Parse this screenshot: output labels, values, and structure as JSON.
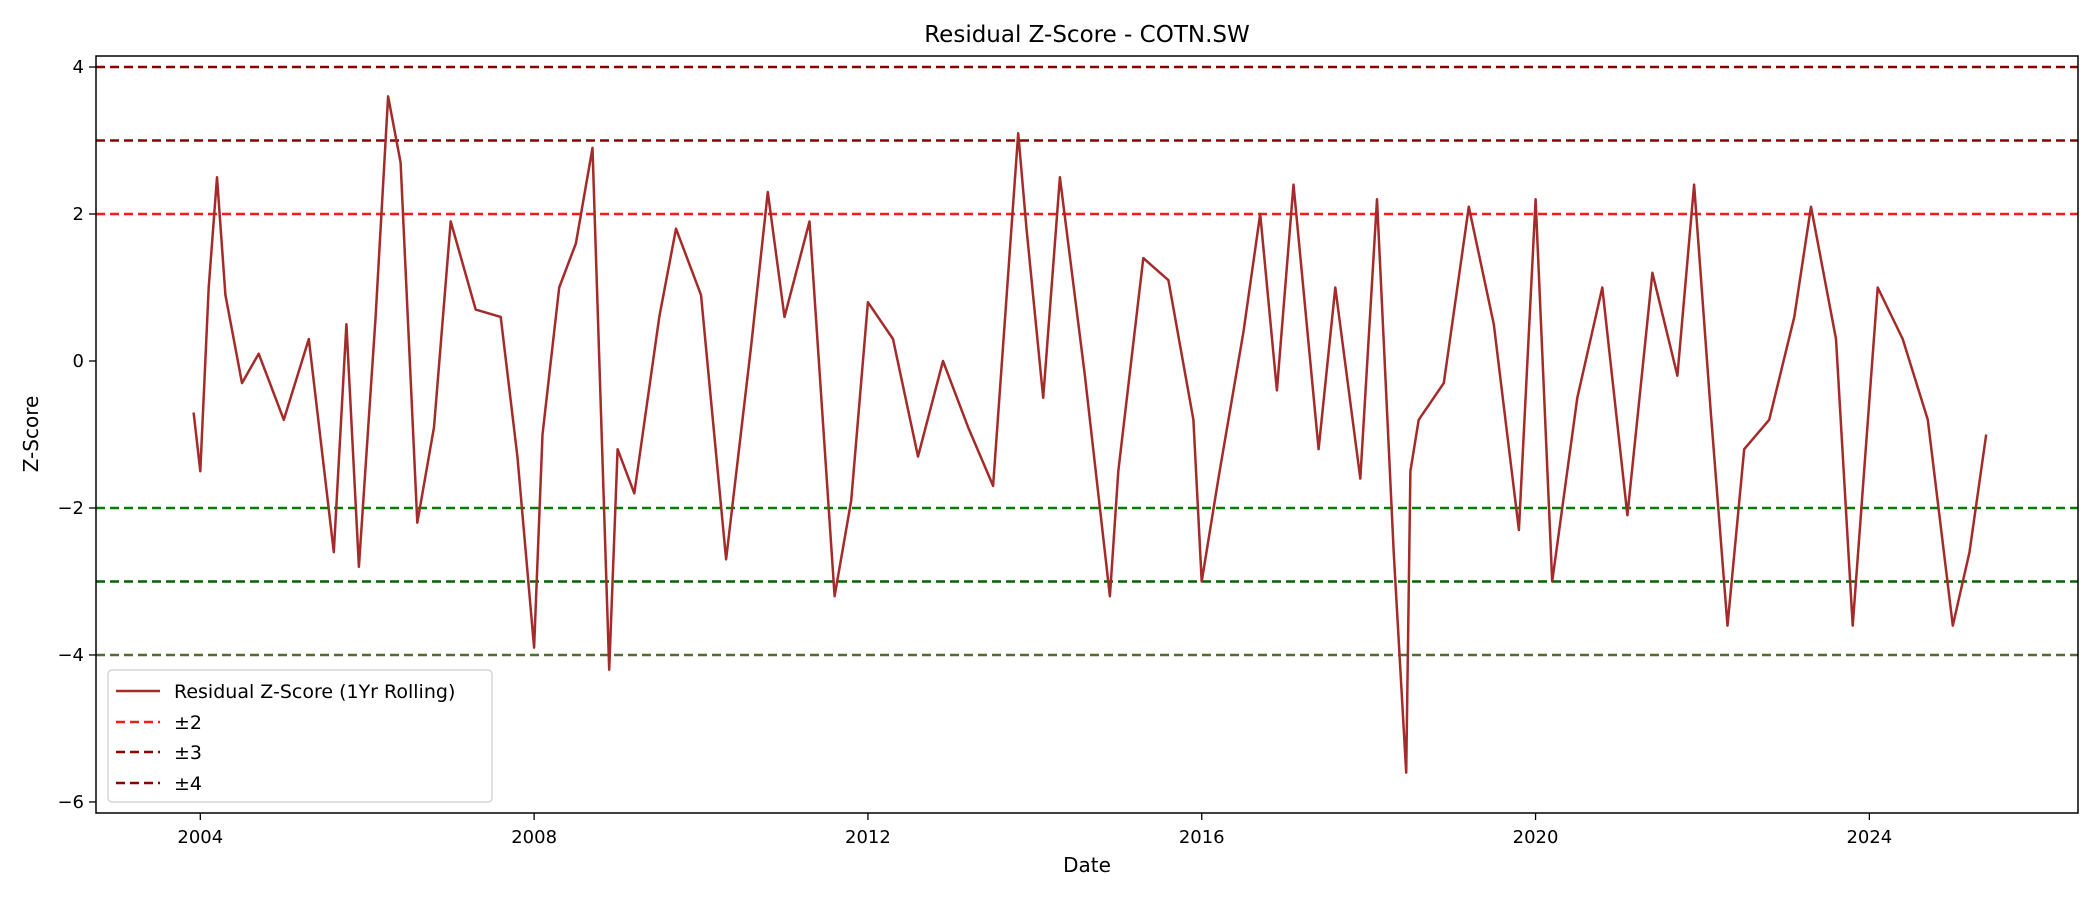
{
  "chart_data": {
    "type": "line",
    "title": "Residual Z-Score - COTN.SW",
    "xlabel": "Date",
    "ylabel": "Z-Score",
    "xlim": [
      2002.75,
      2026.5
    ],
    "ylim": [
      -6.15,
      4.15
    ],
    "x_ticks": [
      2004,
      2008,
      2012,
      2016,
      2020,
      2024
    ],
    "x_tick_labels": [
      "2004",
      "2008",
      "2012",
      "2016",
      "2020",
      "2024"
    ],
    "y_ticks": [
      -6,
      -4,
      -2,
      0,
      2,
      4
    ],
    "y_tick_labels": [
      "−6",
      "−4",
      "−2",
      "0",
      "2",
      "4"
    ],
    "grid": false,
    "legend_position": "lower-left",
    "reference_lines": [
      {
        "y": 2,
        "color": "#ff1a1a",
        "style": "dashed",
        "series": "±2"
      },
      {
        "y": 3,
        "color": "#8b0000",
        "style": "dashed",
        "series": "±3"
      },
      {
        "y": 4,
        "color": "#8b0000",
        "style": "dashed",
        "series": "±4"
      },
      {
        "y": -2,
        "color": "#008000",
        "style": "dashed",
        "series": "±2"
      },
      {
        "y": -3,
        "color": "#006400",
        "style": "dashed",
        "series": "±3"
      },
      {
        "y": -4,
        "color": "#556b2f",
        "style": "dashed",
        "series": "±4"
      }
    ],
    "series": [
      {
        "name": "Residual Z-Score (1Yr Rolling)",
        "color": "#a52a2a",
        "x": [
          2003.92,
          2004.0,
          2004.1,
          2004.2,
          2004.3,
          2004.5,
          2004.7,
          2005.0,
          2005.3,
          2005.6,
          2005.75,
          2005.9,
          2006.1,
          2006.25,
          2006.4,
          2006.6,
          2006.8,
          2007.0,
          2007.3,
          2007.6,
          2007.8,
          2008.0,
          2008.1,
          2008.3,
          2008.5,
          2008.7,
          2008.9,
          2009.0,
          2009.2,
          2009.5,
          2009.7,
          2010.0,
          2010.3,
          2010.6,
          2010.8,
          2011.0,
          2011.3,
          2011.6,
          2011.8,
          2012.0,
          2012.3,
          2012.6,
          2012.9,
          2013.2,
          2013.5,
          2013.8,
          2013.9,
          2014.1,
          2014.3,
          2014.6,
          2014.9,
          2015.0,
          2015.3,
          2015.6,
          2015.9,
          2016.0,
          2016.2,
          2016.5,
          2016.7,
          2016.9,
          2017.1,
          2017.4,
          2017.6,
          2017.9,
          2018.1,
          2018.3,
          2018.45,
          2018.5,
          2018.6,
          2018.9,
          2019.2,
          2019.5,
          2019.8,
          2020.0,
          2020.2,
          2020.5,
          2020.8,
          2021.1,
          2021.4,
          2021.7,
          2021.9,
          2022.1,
          2022.3,
          2022.5,
          2022.8,
          2023.1,
          2023.3,
          2023.6,
          2023.8,
          2024.1,
          2024.4,
          2024.7,
          2025.0,
          2025.2,
          2025.4
        ],
        "y": [
          -0.7,
          -1.5,
          1.0,
          2.5,
          0.9,
          -0.3,
          0.1,
          -0.8,
          0.3,
          -2.6,
          0.5,
          -2.8,
          0.6,
          3.6,
          2.7,
          -2.2,
          -0.9,
          1.9,
          0.7,
          0.6,
          -1.3,
          -3.9,
          -1.0,
          1.0,
          1.6,
          2.9,
          -4.2,
          -1.2,
          -1.8,
          0.6,
          1.8,
          0.9,
          -2.7,
          0.2,
          2.3,
          0.6,
          1.9,
          -3.2,
          -1.9,
          0.8,
          0.3,
          -1.3,
          0.0,
          -0.9,
          -1.7,
          3.1,
          1.8,
          -0.5,
          2.5,
          -0.2,
          -3.2,
          -1.5,
          1.4,
          1.1,
          -0.8,
          -3.0,
          -1.6,
          0.4,
          2.0,
          -0.4,
          2.4,
          -1.2,
          1.0,
          -1.6,
          2.2,
          -2.6,
          -5.6,
          -1.5,
          -0.8,
          -0.3,
          2.1,
          0.5,
          -2.3,
          2.2,
          -3.0,
          -0.5,
          1.0,
          -2.1,
          1.2,
          -0.2,
          2.4,
          -0.7,
          -3.6,
          -1.2,
          -0.8,
          0.6,
          2.1,
          0.3,
          -3.6,
          1.0,
          0.3,
          -0.8,
          -3.6,
          -2.6,
          -1.0
        ]
      }
    ]
  }
}
